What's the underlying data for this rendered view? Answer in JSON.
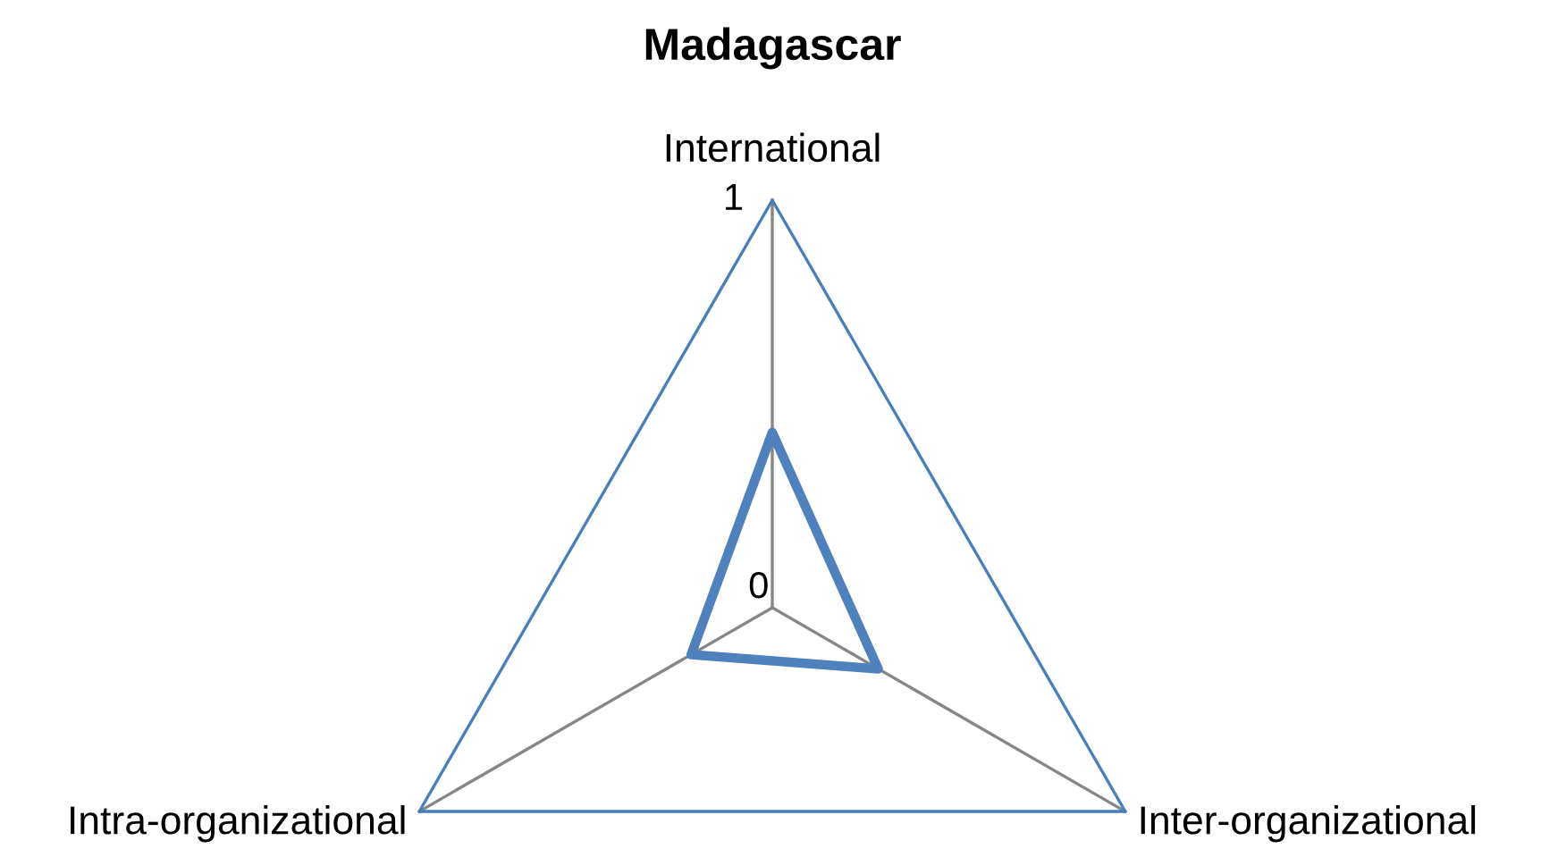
{
  "chart_data": {
    "type": "radar",
    "title": "Madagascar",
    "categories": [
      "International",
      "Inter-organizational",
      "Intra-organizational"
    ],
    "series": [
      {
        "color": "#4f81bd",
        "values": [
          0.43,
          0.3,
          0.23
        ]
      }
    ],
    "ylim": [
      0,
      1
    ],
    "yticks": [
      0,
      1
    ],
    "grid": true
  }
}
